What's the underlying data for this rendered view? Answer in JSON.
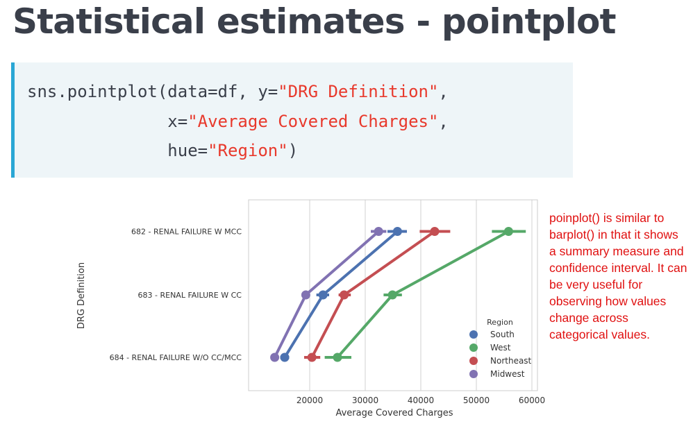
{
  "page": {
    "title": "Statistical estimates - pointplot"
  },
  "code": {
    "line1_prefix": "sns.pointplot(data=df, y=",
    "line1_str": "\"DRG Definition\"",
    "line1_suffix": ",",
    "line2_prefix": "              x=",
    "line2_str": "\"Average Covered Charges\"",
    "line2_suffix": ",",
    "line3_prefix": "              hue=",
    "line3_str": "\"Region\"",
    "line3_suffix": ")"
  },
  "note": {
    "text": "poinplot() is similar to barplot() in that it shows a summary measure and confidence interval. It can be very useful for observing how values change across categorical values."
  },
  "chart_data": {
    "type": "line",
    "xlabel": "Average Covered Charges",
    "ylabel": "DRG Definition",
    "categories": [
      "682 - RENAL FAILURE W MCC",
      "683 - RENAL FAILURE W CC",
      "684 - RENAL FAILURE W/O CC/MCC"
    ],
    "xticks": [
      "20000",
      "30000",
      "40000",
      "50000",
      "60000"
    ],
    "xlim": [
      9000,
      61000
    ],
    "grid": true,
    "legend": {
      "title": "Region",
      "placement": "lower-right"
    },
    "series": [
      {
        "name": "South",
        "color": "#4c72b0",
        "values": [
          35800,
          22400,
          15500
        ],
        "ci": [
          [
            34000,
            37500
          ],
          [
            21200,
            23500
          ],
          [
            14700,
            16300
          ]
        ]
      },
      {
        "name": "West",
        "color": "#55a868",
        "values": [
          55800,
          34900,
          25000
        ],
        "ci": [
          [
            52800,
            58900
          ],
          [
            33300,
            36600
          ],
          [
            22700,
            27500
          ]
        ]
      },
      {
        "name": "Northeast",
        "color": "#c44e52",
        "values": [
          42500,
          26200,
          20400
        ],
        "ci": [
          [
            39800,
            45300
          ],
          [
            25200,
            27400
          ],
          [
            19000,
            21900
          ]
        ]
      },
      {
        "name": "Midwest",
        "color": "#8172b2",
        "values": [
          32400,
          19300,
          13700
        ],
        "ci": [
          [
            31000,
            33800
          ],
          [
            18700,
            20000
          ],
          [
            13000,
            14400
          ]
        ]
      }
    ]
  }
}
